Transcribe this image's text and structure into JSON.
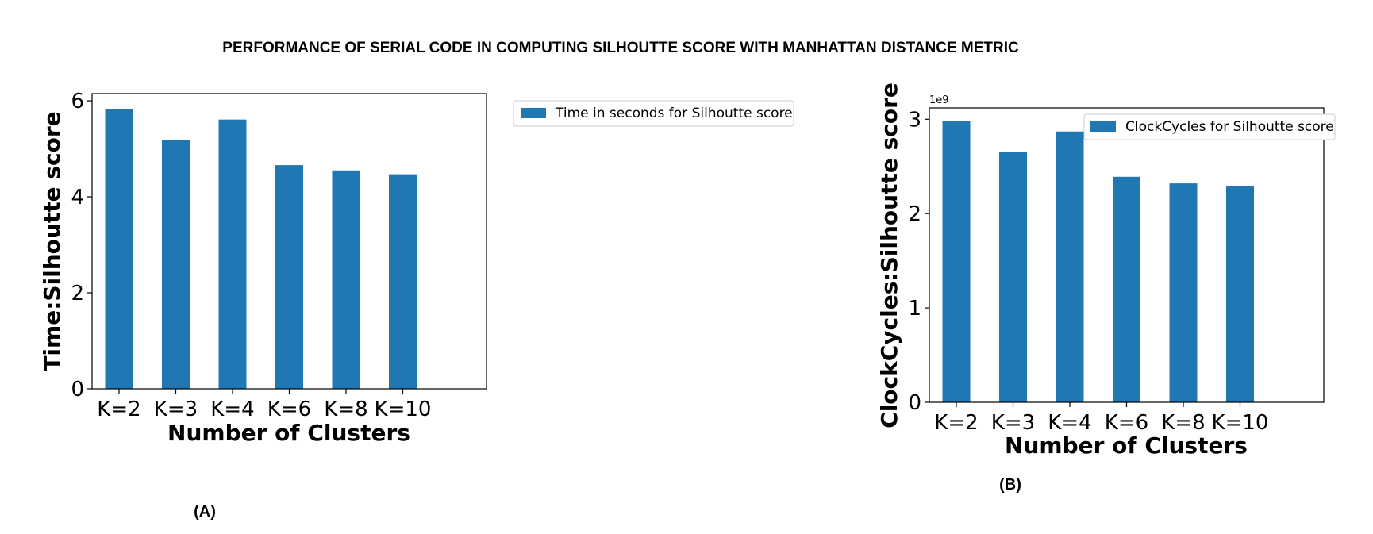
{
  "figure": {
    "title": "PERFORMANCE OF SERIAL CODE IN COMPUTING SILHOUTTE SCORE WITH MANHATTAN DISTANCE METRIC",
    "bar_color": "#1f77b4"
  },
  "chart_data": [
    {
      "type": "bar",
      "panel_label": "(A)",
      "categories": [
        "K=2",
        "K=3",
        "K=4",
        "K=6",
        "K=8",
        "K=10"
      ],
      "series": [
        {
          "name": "Time in seconds for Silhoutte score",
          "values": [
            5.83,
            5.18,
            5.61,
            4.66,
            4.55,
            4.47
          ]
        }
      ],
      "xlabel": "Number of Clusters",
      "ylabel": "Time:Silhoutte score",
      "ylim": [
        0,
        6.15
      ],
      "yticks": [
        0,
        2,
        4,
        6
      ],
      "ytick_labels": [
        "0",
        "2",
        "4",
        "6"
      ],
      "legend_placement": "outside-right",
      "grid": false
    },
    {
      "type": "bar",
      "panel_label": "(B)",
      "categories": [
        "K=2",
        "K=3",
        "K=4",
        "K=6",
        "K=8",
        "K=10"
      ],
      "series": [
        {
          "name": "ClockCycles for Silhoutte score",
          "values": [
            2.98,
            2.65,
            2.87,
            2.39,
            2.32,
            2.29
          ]
        }
      ],
      "xlabel": "Number of Clusters",
      "ylabel": "ClockCycles:Silhoutte score",
      "y_offset_label": "1e9",
      "ylim": [
        0,
        3.12
      ],
      "yticks": [
        0,
        1,
        2,
        3
      ],
      "ytick_labels": [
        "0",
        "1",
        "2",
        "3"
      ],
      "legend_placement": "top-right",
      "grid": false
    }
  ]
}
